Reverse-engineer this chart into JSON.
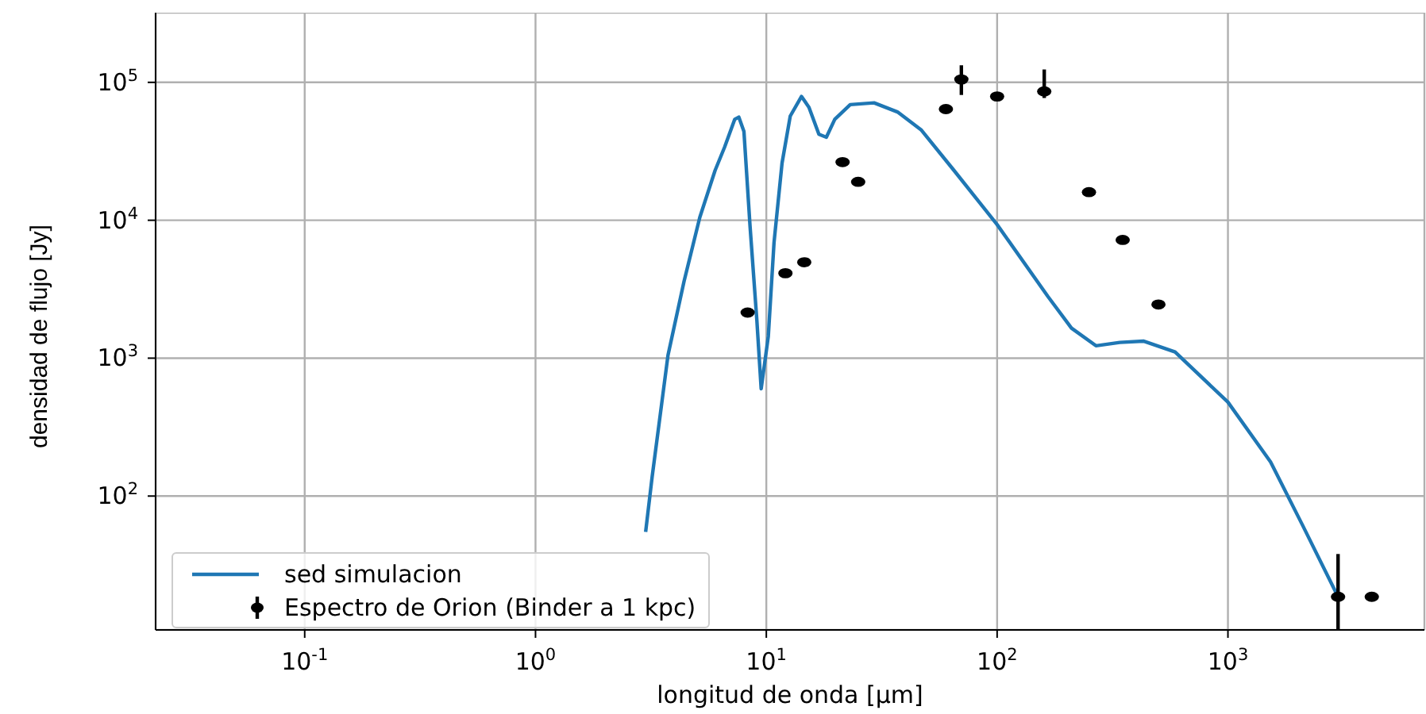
{
  "chart_data": {
    "type": "line",
    "xlabel": "longitud de onda [μm]",
    "ylabel": "densidad de flujo [Jy]",
    "log": "xy",
    "grid": true,
    "legend": "bottom left",
    "xlim": [
      0.0226,
      7100
    ],
    "xticks": [
      {
        "value": 0.1,
        "label": "10$^{-1}$"
      },
      {
        "value": 1,
        "label": "10$^{0}$"
      },
      {
        "value": 10,
        "label": "10$^{1}$"
      },
      {
        "value": 100,
        "label": "10$^{2}$"
      },
      {
        "value": 1000,
        "label": "10$^{3}$"
      }
    ],
    "ylim": [
      10.7,
      320000
    ],
    "yticks": [
      {
        "value": 100,
        "label": "10$^{2}$"
      },
      {
        "value": 1000,
        "label": "10$^{3}$"
      },
      {
        "value": 10000,
        "label": "10$^{4}$"
      },
      {
        "value": 100000,
        "label": "10$^{5}$"
      }
    ],
    "series": [
      {
        "name": "sed simulacion",
        "marker": "none",
        "color": "#1f77b4",
        "x": [
          3.0,
          3.2,
          3.75,
          4.4,
          5.15,
          6.0,
          6.6,
          7.3,
          7.6,
          8.0,
          8.5,
          9.1,
          9.5,
          10.2,
          10.8,
          11.7,
          12.7,
          14.2,
          15.3,
          16.9,
          18.2,
          19.8,
          23.1,
          29.3,
          37,
          47,
          65,
          100,
          166,
          210,
          268,
          340,
          430,
          590,
          1000,
          1530,
          2100,
          3000
        ],
        "values": [
          55,
          137,
          1050,
          3600,
          10500,
          23000,
          34000,
          54000,
          56000,
          44000,
          9100,
          1880,
          600,
          1440,
          6900,
          26000,
          57000,
          79000,
          66000,
          42000,
          40000,
          54000,
          69000,
          71000,
          61000,
          45000,
          23000,
          9300,
          2800,
          1650,
          1230,
          1300,
          1330,
          1110,
          480,
          177,
          62,
          18.6
        ]
      },
      {
        "name": "Espectro de Orion (Binder a 1 kpc)",
        "type": "scatter",
        "marker": "circle",
        "color": "#000000",
        "x": [
          8.3,
          12.1,
          14.6,
          21.4,
          25,
          60,
          70,
          100,
          160,
          250,
          350,
          500,
          3000,
          4200
        ],
        "values": [
          2140,
          4130,
          4960,
          26400,
          19000,
          64000,
          105000,
          79000,
          86000,
          16000,
          7200,
          2450,
          18.6,
          18.6
        ],
        "errors": [
          null,
          null,
          null,
          null,
          null,
          null,
          [
            81000,
            133000
          ],
          null,
          [
            77000,
            124000
          ],
          null,
          null,
          null,
          [
            10.7,
            38
          ],
          null
        ]
      }
    ]
  }
}
